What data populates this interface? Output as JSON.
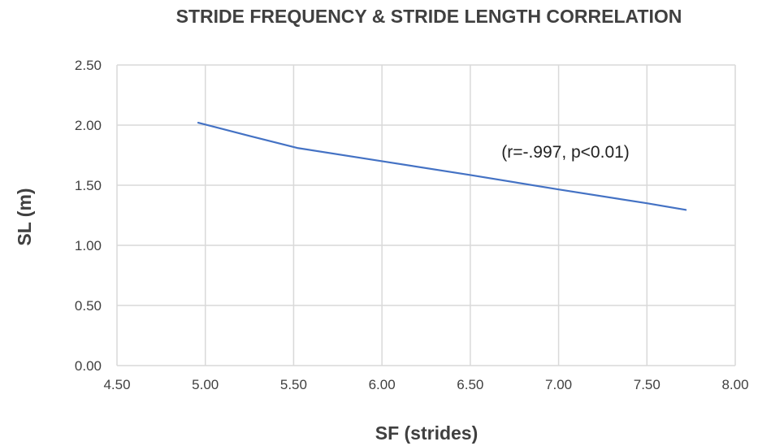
{
  "chart_data": {
    "type": "line",
    "title": "STRIDE FREQUENCY & STRIDE LENGTH CORRELATION",
    "xlabel": "SF (strides)",
    "ylabel": "SL (m)",
    "xlim": [
      4.5,
      8.0
    ],
    "ylim": [
      0.0,
      2.5
    ],
    "x_ticks": [
      "4.50",
      "5.00",
      "5.50",
      "6.00",
      "6.50",
      "7.00",
      "7.50",
      "8.00"
    ],
    "y_ticks": [
      "0.00",
      "0.50",
      "1.00",
      "1.50",
      "2.00",
      "2.50"
    ],
    "grid": true,
    "legend": "none",
    "series": [
      {
        "color": "#4472c4",
        "points": [
          [
            4.96,
            2.02
          ],
          [
            5.25,
            1.91
          ],
          [
            5.52,
            1.81
          ],
          [
            6.0,
            1.7
          ],
          [
            6.5,
            1.585
          ],
          [
            7.0,
            1.465
          ],
          [
            7.5,
            1.35
          ],
          [
            7.72,
            1.295
          ]
        ]
      }
    ],
    "annotation": "(r=-.997, p<0.01)"
  }
}
